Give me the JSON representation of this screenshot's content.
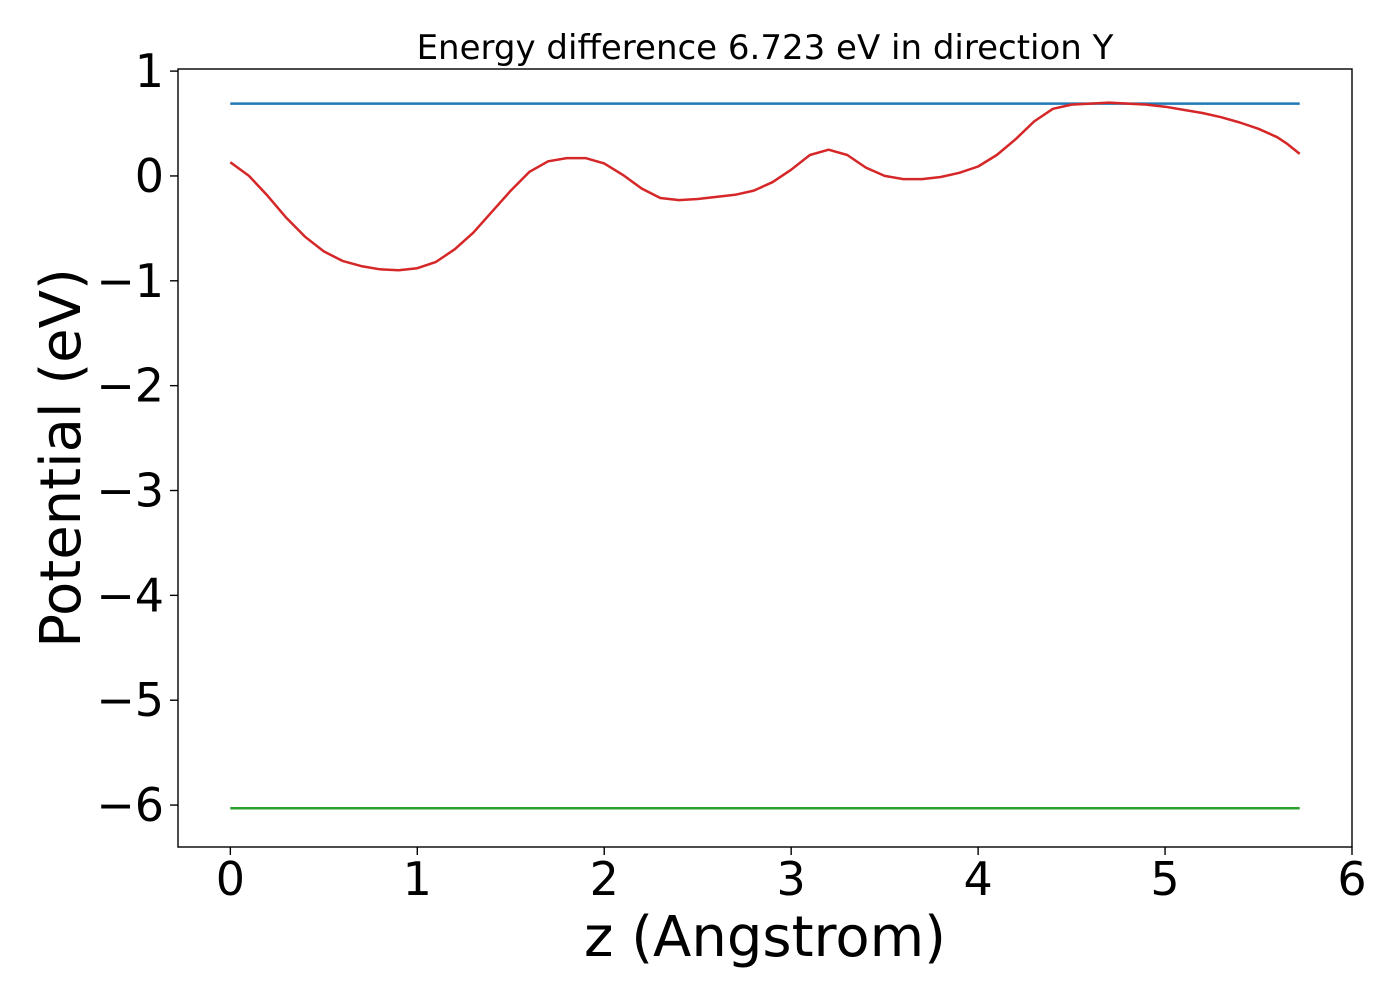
{
  "chart_data": {
    "type": "line",
    "title": "Energy difference 6.723 eV in direction Y",
    "xlabel": "z (Angstrom)",
    "ylabel": "Potential (eV)",
    "xlim": [
      -0.28,
      6.0
    ],
    "ylim": [
      -6.4,
      1.02
    ],
    "xticks": [
      0,
      1,
      2,
      3,
      4,
      5,
      6
    ],
    "xtick_labels": [
      "0",
      "1",
      "2",
      "3",
      "4",
      "5",
      "6"
    ],
    "yticks": [
      1,
      0,
      -1,
      -2,
      -3,
      -4,
      -5,
      -6
    ],
    "ytick_labels": [
      "1",
      "0",
      "−1",
      "−2",
      "−3",
      "−4",
      "−5",
      "−6"
    ],
    "grid": false,
    "series": [
      {
        "color": "#1f77b4",
        "x": [
          0,
          5.72
        ],
        "y": [
          0.69,
          0.69
        ]
      },
      {
        "color": "#d62728",
        "x": [
          0.0,
          0.1,
          0.2,
          0.3,
          0.4,
          0.5,
          0.6,
          0.7,
          0.8,
          0.9,
          1.0,
          1.1,
          1.2,
          1.3,
          1.4,
          1.5,
          1.6,
          1.7,
          1.8,
          1.9,
          2.0,
          2.1,
          2.2,
          2.3,
          2.4,
          2.5,
          2.6,
          2.7,
          2.8,
          2.9,
          3.0,
          3.1,
          3.2,
          3.3,
          3.4,
          3.5,
          3.6,
          3.7,
          3.8,
          3.9,
          4.0,
          4.1,
          4.2,
          4.3,
          4.4,
          4.5,
          4.6,
          4.7,
          4.8,
          4.9,
          5.0,
          5.1,
          5.2,
          5.3,
          5.4,
          5.5,
          5.6,
          5.65,
          5.72
        ],
        "y": [
          0.13,
          0.0,
          -0.19,
          -0.4,
          -0.58,
          -0.72,
          -0.81,
          -0.86,
          -0.89,
          -0.9,
          -0.88,
          -0.82,
          -0.7,
          -0.54,
          -0.34,
          -0.14,
          0.04,
          0.14,
          0.17,
          0.17,
          0.12,
          0.01,
          -0.12,
          -0.21,
          -0.23,
          -0.22,
          -0.2,
          -0.18,
          -0.14,
          -0.06,
          0.06,
          0.2,
          0.25,
          0.2,
          0.08,
          0.0,
          -0.03,
          -0.03,
          -0.01,
          0.03,
          0.09,
          0.2,
          0.35,
          0.52,
          0.64,
          0.68,
          0.69,
          0.7,
          0.69,
          0.68,
          0.66,
          0.63,
          0.6,
          0.56,
          0.51,
          0.45,
          0.37,
          0.31,
          0.21
        ]
      },
      {
        "color": "#2ca02c",
        "x": [
          0,
          5.72
        ],
        "y": [
          -6.03,
          -6.03
        ]
      }
    ]
  }
}
